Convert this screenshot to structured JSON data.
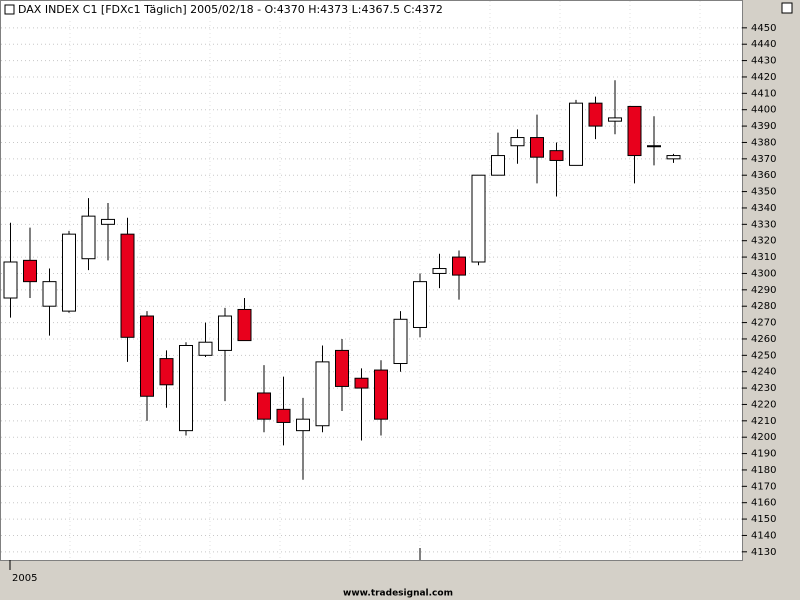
{
  "chart_data": {
    "type": "candlestick",
    "title": "DAX INDEX C1 [FDXc1  Täglich] 2005/02/18 - O:4370 H:4373 L:4367.5 C:4372",
    "x_label": "2005",
    "footer": "www.tradesignal.com",
    "up_color": "#ffffff",
    "down_color": "#e8001c",
    "open": [
      4285,
      4308,
      4280,
      4277,
      4309,
      4330,
      4324,
      4274,
      4248,
      4204,
      4250,
      4253,
      4278,
      4227,
      4217,
      4204,
      4207,
      4253,
      4236,
      4241,
      4245,
      4267,
      4300,
      4310,
      4307,
      4360,
      4378,
      4383,
      4375,
      4366,
      4404,
      4393,
      4402,
      4378,
      4370
    ],
    "high": [
      4331,
      4328,
      4303,
      4326,
      4346,
      4343,
      4334,
      4277,
      4253,
      4258,
      4270,
      4279,
      4285,
      4244,
      4237,
      4224,
      4256,
      4260,
      4242,
      4247,
      4277,
      4300,
      4312,
      4314,
      4360,
      4386,
      4388,
      4397,
      4380,
      4406,
      4408,
      4418,
      4402,
      4396,
      4373
    ],
    "low": [
      4273,
      4285,
      4262,
      4276,
      4302,
      4308,
      4246,
      4210,
      4218,
      4201,
      4249,
      4222,
      4259,
      4203,
      4195,
      4174,
      4203,
      4216,
      4198,
      4201,
      4240,
      4261,
      4291,
      4284,
      4305,
      4360,
      4367,
      4355,
      4347,
      4366,
      4382,
      4385,
      4355,
      4366,
      4367.5
    ],
    "close": [
      4307,
      4295,
      4295,
      4324,
      4335,
      4333,
      4261,
      4225,
      4232,
      4256,
      4258,
      4274,
      4259,
      4211,
      4209,
      4211,
      4246,
      4231,
      4230,
      4211,
      4272,
      4295,
      4303,
      4299,
      4360,
      4372,
      4383,
      4371,
      4369,
      4404,
      4390,
      4395,
      4372,
      4378,
      4372
    ],
    "ylim": [
      4125,
      4467
    ],
    "yticks": [
      4130,
      4140,
      4150,
      4160,
      4170,
      4180,
      4190,
      4200,
      4210,
      4220,
      4230,
      4240,
      4250,
      4260,
      4270,
      4280,
      4290,
      4300,
      4310,
      4320,
      4330,
      4340,
      4350,
      4360,
      4370,
      4380,
      4390,
      4400,
      4410,
      4420,
      4430,
      4440,
      4450
    ],
    "grid": true
  }
}
